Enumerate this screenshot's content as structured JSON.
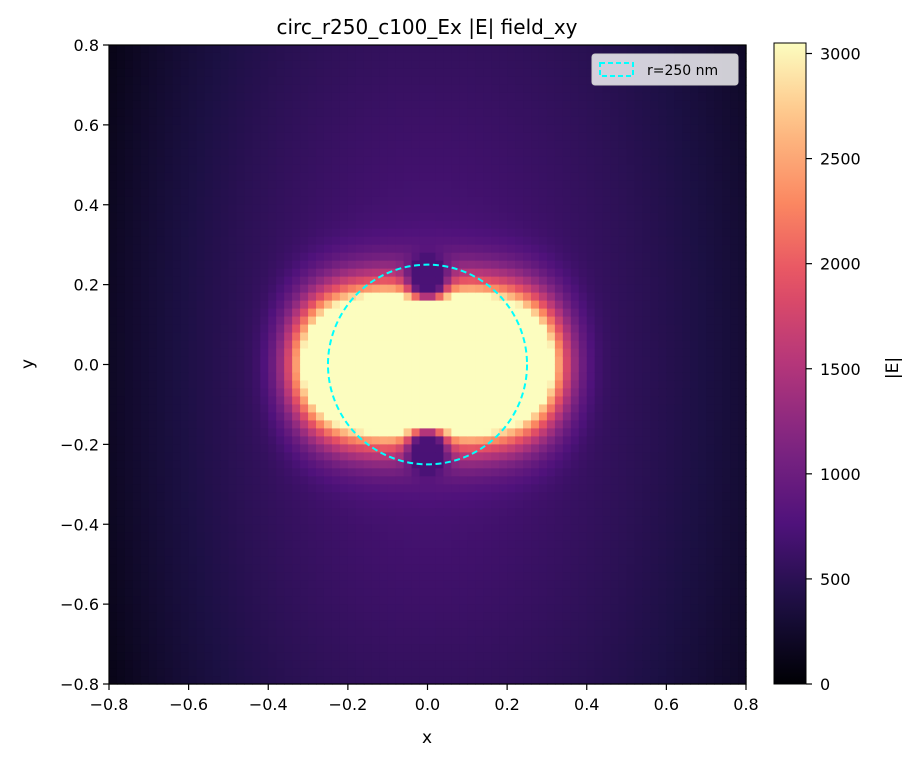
{
  "chart_data": {
    "type": "heatmap",
    "title": "circ_r250_c100_Ex |E| field_xy",
    "xlabel": "x",
    "ylabel": "y",
    "xlim": [
      -0.8,
      0.8
    ],
    "ylim": [
      -0.8,
      0.8
    ],
    "x_ticks": [
      -0.8,
      -0.6,
      -0.4,
      -0.2,
      0.0,
      0.2,
      0.4,
      0.6,
      0.8
    ],
    "y_ticks": [
      -0.8,
      -0.6,
      -0.4,
      -0.2,
      0.0,
      0.2,
      0.4,
      0.6,
      0.8
    ],
    "x_tick_labels": [
      "−0.8",
      "−0.6",
      "−0.4",
      "−0.2",
      "0.0",
      "0.2",
      "0.4",
      "0.6",
      "0.8"
    ],
    "y_tick_labels": [
      "−0.8",
      "−0.6",
      "−0.4",
      "−0.2",
      "0.0",
      "0.2",
      "0.4",
      "0.6",
      "0.8"
    ],
    "grid": false,
    "colormap": "magma",
    "colorbar": {
      "label": "|E|",
      "range": [
        0,
        3050
      ],
      "ticks": [
        0,
        500,
        1000,
        1500,
        2000,
        2500,
        3000
      ],
      "tick_labels": [
        "0",
        "500",
        "1000",
        "1500",
        "2000",
        "2500",
        "3000"
      ]
    },
    "grid_resolution": 80,
    "field_description": {
      "saturated_center_value": 3050,
      "peak_region_x_extent": [
        -0.33,
        0.33
      ],
      "peak_region_y_extent": [
        -0.19,
        0.19
      ],
      "background_value_center_column": 650,
      "background_value_far_left": 200,
      "background_value_far_right": 300,
      "notch_positions_y": [
        0.2,
        -0.2
      ]
    },
    "overlay": {
      "shape": "circle",
      "center": [
        0,
        0
      ],
      "radius": 0.25,
      "style": "dashed",
      "color": "#00ffff"
    },
    "legend": {
      "position": "top-right",
      "entries": [
        {
          "label": "r=250 nm",
          "color": "#00ffff"
        }
      ]
    }
  }
}
